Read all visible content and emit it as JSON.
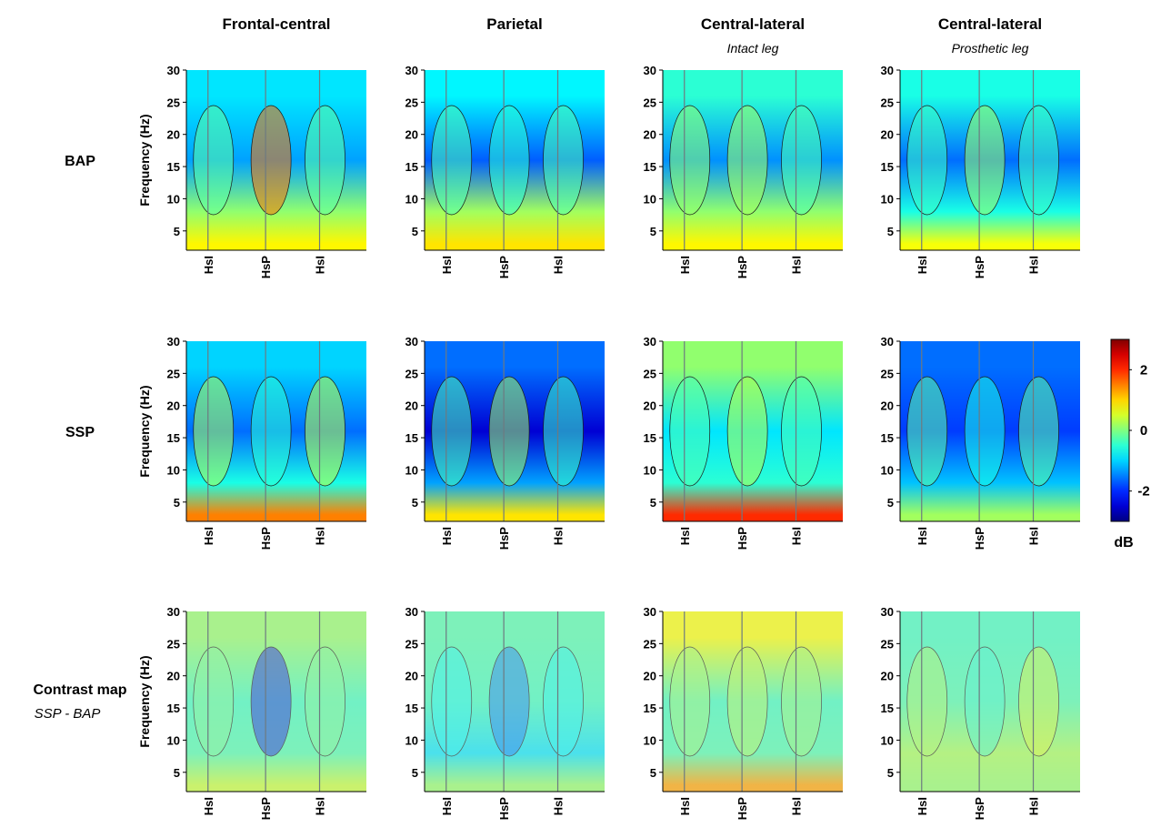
{
  "chart_data": {
    "type": "heatmap",
    "columns": [
      {
        "title": "Frontal-central",
        "subtitle": ""
      },
      {
        "title": "Parietal",
        "subtitle": ""
      },
      {
        "title": "Central-lateral",
        "subtitle": "Intact leg"
      },
      {
        "title": "Central-lateral",
        "subtitle": "Prosthetic leg"
      }
    ],
    "rows": [
      {
        "label": "BAP",
        "sublabel": ""
      },
      {
        "label": "SSP",
        "sublabel": ""
      },
      {
        "label": "Contrast map",
        "sublabel": "SSP - BAP"
      }
    ],
    "ylabel": "Frequency (Hz)",
    "ylim": [
      2,
      30
    ],
    "yticks": [
      "5",
      "10",
      "15",
      "20",
      "25",
      "30"
    ],
    "events": [
      {
        "label": "HsI",
        "position": 0.12
      },
      {
        "label": "HsP",
        "position": 0.44
      },
      {
        "label": "HsI",
        "position": 0.74
      }
    ],
    "colorbar": {
      "unit": "dB",
      "range": [
        -3,
        3
      ],
      "ticks": [
        "2",
        "0",
        "-2"
      ],
      "tick_values": [
        2,
        0,
        -2
      ]
    },
    "panels": [
      [
        {
          "bands": [
            {
              "f": 3,
              "v": 0.8
            },
            {
              "f": 8,
              "v": 0.1
            },
            {
              "f": 16,
              "v": -1.3
            },
            {
              "f": 26,
              "v": -0.9
            }
          ],
          "event_v": [
            -0.2,
            1.6,
            -0.2
          ]
        },
        {
          "bands": [
            {
              "f": 3,
              "v": 0.9
            },
            {
              "f": 8,
              "v": 0.2
            },
            {
              "f": 16,
              "v": -1.7
            },
            {
              "f": 26,
              "v": -0.8
            }
          ],
          "event_v": [
            -0.3,
            -0.5,
            -0.3
          ]
        },
        {
          "bands": [
            {
              "f": 3,
              "v": 0.8
            },
            {
              "f": 8,
              "v": 0.1
            },
            {
              "f": 16,
              "v": -1.4
            },
            {
              "f": 26,
              "v": -0.5
            }
          ],
          "event_v": [
            0.1,
            0.2,
            -0.3
          ]
        },
        {
          "bands": [
            {
              "f": 3,
              "v": 0.7
            },
            {
              "f": 8,
              "v": -0.6
            },
            {
              "f": 16,
              "v": -1.6
            },
            {
              "f": 26,
              "v": -0.6
            }
          ],
          "event_v": [
            -0.4,
            0.2,
            -0.4
          ]
        }
      ],
      [
        {
          "bands": [
            {
              "f": 3,
              "v": 1.5
            },
            {
              "f": 8,
              "v": -0.6
            },
            {
              "f": 16,
              "v": -1.6
            },
            {
              "f": 26,
              "v": -1.0
            }
          ],
          "event_v": [
            0.3,
            -0.5,
            0.4
          ]
        },
        {
          "bands": [
            {
              "f": 3,
              "v": 0.9
            },
            {
              "f": 8,
              "v": -1.3
            },
            {
              "f": 16,
              "v": -2.5
            },
            {
              "f": 26,
              "v": -1.6
            }
          ],
          "event_v": [
            -0.3,
            0.2,
            -0.4
          ]
        },
        {
          "bands": [
            {
              "f": 3,
              "v": 2.0
            },
            {
              "f": 8,
              "v": -0.5
            },
            {
              "f": 16,
              "v": -0.9
            },
            {
              "f": 26,
              "v": 0.1
            }
          ],
          "event_v": [
            -0.3,
            0.3,
            -0.3
          ]
        },
        {
          "bands": [
            {
              "f": 3,
              "v": 0.2
            },
            {
              "f": 8,
              "v": -1.1
            },
            {
              "f": 16,
              "v": -1.9
            },
            {
              "f": 26,
              "v": -1.6
            }
          ],
          "event_v": [
            -0.2,
            -0.6,
            -0.2
          ]
        }
      ],
      [
        {
          "bands": [
            {
              "f": 3,
              "v": 0.4
            },
            {
              "f": 8,
              "v": -0.3
            },
            {
              "f": 16,
              "v": -0.4
            },
            {
              "f": 26,
              "v": 0.1
            }
          ],
          "event_v": [
            -0.1,
            -2.4,
            -0.1
          ]
        },
        {
          "bands": [
            {
              "f": 3,
              "v": 0.1
            },
            {
              "f": 8,
              "v": -0.9
            },
            {
              "f": 16,
              "v": -0.4
            },
            {
              "f": 26,
              "v": -0.3
            }
          ],
          "event_v": [
            -0.7,
            -1.6,
            -0.7
          ]
        },
        {
          "bands": [
            {
              "f": 3,
              "v": 1.3
            },
            {
              "f": 8,
              "v": -0.3
            },
            {
              "f": 16,
              "v": -0.4
            },
            {
              "f": 26,
              "v": 0.7
            }
          ],
          "event_v": [
            0.1,
            0.3,
            0.1
          ]
        },
        {
          "bands": [
            {
              "f": 3,
              "v": 0.1
            },
            {
              "f": 8,
              "v": 0.2
            },
            {
              "f": 16,
              "v": -0.3
            },
            {
              "f": 26,
              "v": -0.4
            }
          ],
          "event_v": [
            0.2,
            -0.5,
            0.5
          ]
        }
      ]
    ]
  }
}
